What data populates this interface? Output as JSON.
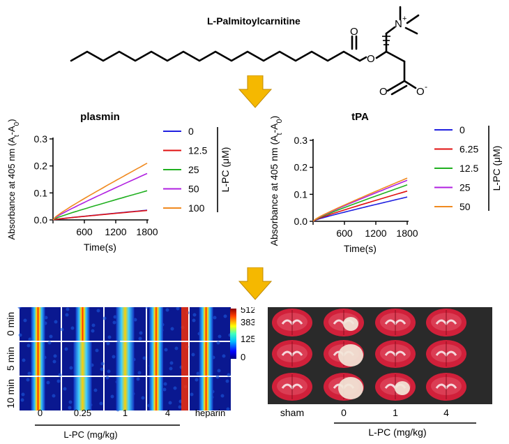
{
  "structure": {
    "name": "L-Palmitoylcarnitine",
    "n_label": "N",
    "n_charge": "+",
    "o_ester": "O",
    "o_carbonyl1": "O",
    "o_carbonyl2": "O",
    "o_anion": "O",
    "o_anion_charge": "-"
  },
  "colors": {
    "arrow": "#f5b800",
    "arrow_edge": "#c08a00",
    "tissue_bg": "#2a2a2a"
  },
  "chart_data": [
    {
      "type": "line",
      "title": "plasmin",
      "xlabel": "Time(s)",
      "ylabel": "Absorbance at 405 nm (A",
      "ylabel_sub1": "t",
      "ylabel_mid": "-A",
      "ylabel_sub2": "0",
      "ylabel_end": ")",
      "xlim": [
        0,
        1800
      ],
      "ylim": [
        0,
        0.3
      ],
      "xticks": [
        "600",
        "1200",
        "1800"
      ],
      "yticks": [
        "0.0",
        "0.1",
        "0.2",
        "0.3"
      ],
      "legend_title": "L-PC (μM)",
      "legend_position": "right",
      "series": [
        {
          "name": "0",
          "color": "#2020e0",
          "x": [
            0,
            1800
          ],
          "y": [
            0,
            0.036
          ]
        },
        {
          "name": "12.5",
          "color": "#e01010",
          "x": [
            0,
            1800
          ],
          "y": [
            0,
            0.035
          ]
        },
        {
          "name": "25",
          "color": "#20b020",
          "x": [
            0,
            1800
          ],
          "y": [
            0,
            0.108
          ]
        },
        {
          "name": "50",
          "color": "#b020e0",
          "x": [
            0,
            1800
          ],
          "y": [
            0,
            0.172
          ]
        },
        {
          "name": "100",
          "color": "#f08a20",
          "x": [
            0,
            1800
          ],
          "y": [
            0,
            0.21
          ]
        }
      ]
    },
    {
      "type": "line",
      "title": "tPA",
      "xlabel": "Time(s)",
      "ylabel": "Absorbance at 405 nm (A",
      "ylabel_sub1": "t",
      "ylabel_mid": "-A",
      "ylabel_sub2": "0",
      "ylabel_end": ")",
      "xlim": [
        0,
        1800
      ],
      "ylim": [
        0,
        0.3
      ],
      "xticks": [
        "600",
        "1200",
        "1800"
      ],
      "yticks": [
        "0.0",
        "0.1",
        "0.2",
        "0.3"
      ],
      "legend_title": "L-PC (μM)",
      "legend_position": "right",
      "series": [
        {
          "name": "0",
          "color": "#2020e0",
          "x": [
            0,
            1800
          ],
          "y": [
            0,
            0.09
          ]
        },
        {
          "name": "6.25",
          "color": "#e01010",
          "x": [
            0,
            1800
          ],
          "y": [
            0,
            0.112
          ]
        },
        {
          "name": "12.5",
          "color": "#20b020",
          "x": [
            0,
            1800
          ],
          "y": [
            0,
            0.135
          ]
        },
        {
          "name": "25",
          "color": "#b020e0",
          "x": [
            0,
            1800
          ],
          "y": [
            0,
            0.152
          ]
        },
        {
          "name": "50",
          "color": "#f08a20",
          "x": [
            0,
            1800
          ],
          "y": [
            0,
            0.16
          ]
        }
      ]
    }
  ],
  "heatmap_panel": {
    "row_labels": [
      "0 min",
      "5 min",
      "10 min"
    ],
    "col_labels": [
      "0",
      "0.25",
      "1",
      "4",
      "heparin"
    ],
    "colorbar_ticks": [
      "512",
      "383",
      "125",
      "0"
    ],
    "colorbar_range": [
      0,
      512
    ],
    "xlabel": "L-PC (mg/kg)"
  },
  "brain_panel": {
    "col_labels": [
      "sham",
      "0",
      "1",
      "4"
    ],
    "xlabel": "L-PC (mg/kg)"
  }
}
